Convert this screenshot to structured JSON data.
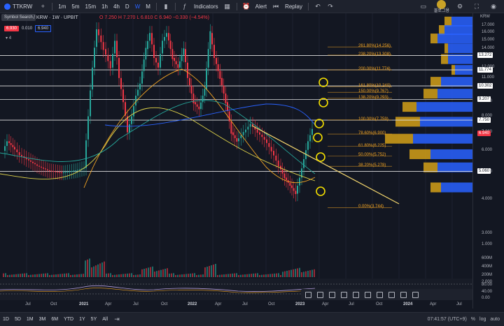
{
  "toolbar": {
    "symbol": "TTKRW",
    "add_label": "+",
    "intervals": [
      "1m",
      "5m",
      "15m",
      "1h",
      "4h",
      "D",
      "W",
      "M"
    ],
    "active_interval": "W",
    "indicators_label": "Indicators",
    "alert_label": "Alert",
    "replay_label": "Replay",
    "user_label": "블로그용"
  },
  "tooltip": "Symbol Search",
  "legend": {
    "title": "/ KRW · 1W · UPBIT",
    "ohlc": "O 7.250  H 7.270  L 6.810  C 6.940  −0.330 (−4.54%)",
    "price_box": "6.930",
    "spread": "0.010",
    "price_box2": "6.940",
    "count": "4"
  },
  "yaxis": {
    "currency": "KRW",
    "ticks": [
      "17.000",
      "16.000",
      "15.000",
      "14.000",
      "12.000",
      "11.000",
      "9.000",
      "8.000",
      "7.000",
      "6.000",
      "5.000",
      "4.000",
      "3.000",
      "2.000",
      "1.000",
      "600M",
      "400M",
      "200M",
      "80.00",
      "40.00",
      "0.00"
    ],
    "badges": [
      {
        "text": "13.272",
        "style": "white"
      },
      {
        "text": "11.774",
        "style": "white"
      },
      {
        "text": "10.302",
        "style": "white"
      },
      {
        "text": "9.207",
        "style": "white"
      },
      {
        "text": "7.750",
        "style": "white"
      },
      {
        "text": "6.940",
        "style": "red"
      },
      {
        "text": "5.060",
        "style": "white"
      }
    ]
  },
  "fib_levels": [
    {
      "label": "261.80%(14.256)",
      "price": 14.256
    },
    {
      "label": "238.20%(13.308)",
      "price": 13.308
    },
    {
      "label": "200.00%(11.774)",
      "price": 11.774
    },
    {
      "label": "161.80%(10.240)",
      "price": 10.24
    },
    {
      "label": "150.00%(9.767)",
      "price": 9.767
    },
    {
      "label": "138.20%(9.293)",
      "price": 9.293
    },
    {
      "label": "100.00%(7.759)",
      "price": 7.759
    },
    {
      "label": "78.60%(6.900)",
      "price": 6.9
    },
    {
      "label": "61.80%(6.225)",
      "price": 6.225
    },
    {
      "label": "50.00%(5.752)",
      "price": 5.752
    },
    {
      "label": "38.20%(5.278)",
      "price": 5.278
    },
    {
      "label": "0.00%(3.744)",
      "price": 3.744
    }
  ],
  "horizontal_lines": [
    13.272,
    11.774,
    10.302,
    9.207,
    7.75,
    5.06
  ],
  "xaxis": [
    "Jul",
    "Oct",
    "2021",
    "Apr",
    "Jul",
    "Oct",
    "2022",
    "Apr",
    "Jul",
    "Oct",
    "2023",
    "Apr",
    "Jul",
    "Oct",
    "2024",
    "Apr",
    "Jul"
  ],
  "ranges": [
    "1D",
    "5D",
    "1M",
    "3M",
    "6M",
    "YTD",
    "1Y",
    "5Y",
    "All"
  ],
  "status": {
    "time": "07:41:57 (UTC+9)",
    "pct": "%",
    "log": "log",
    "auto": "auto"
  },
  "colors": {
    "bg": "#131722",
    "up": "#26a69a",
    "down": "#f23645",
    "fib": "#f5a623",
    "volume_profile_up": "#2962ff",
    "volume_profile_down": "#d4a017"
  }
}
